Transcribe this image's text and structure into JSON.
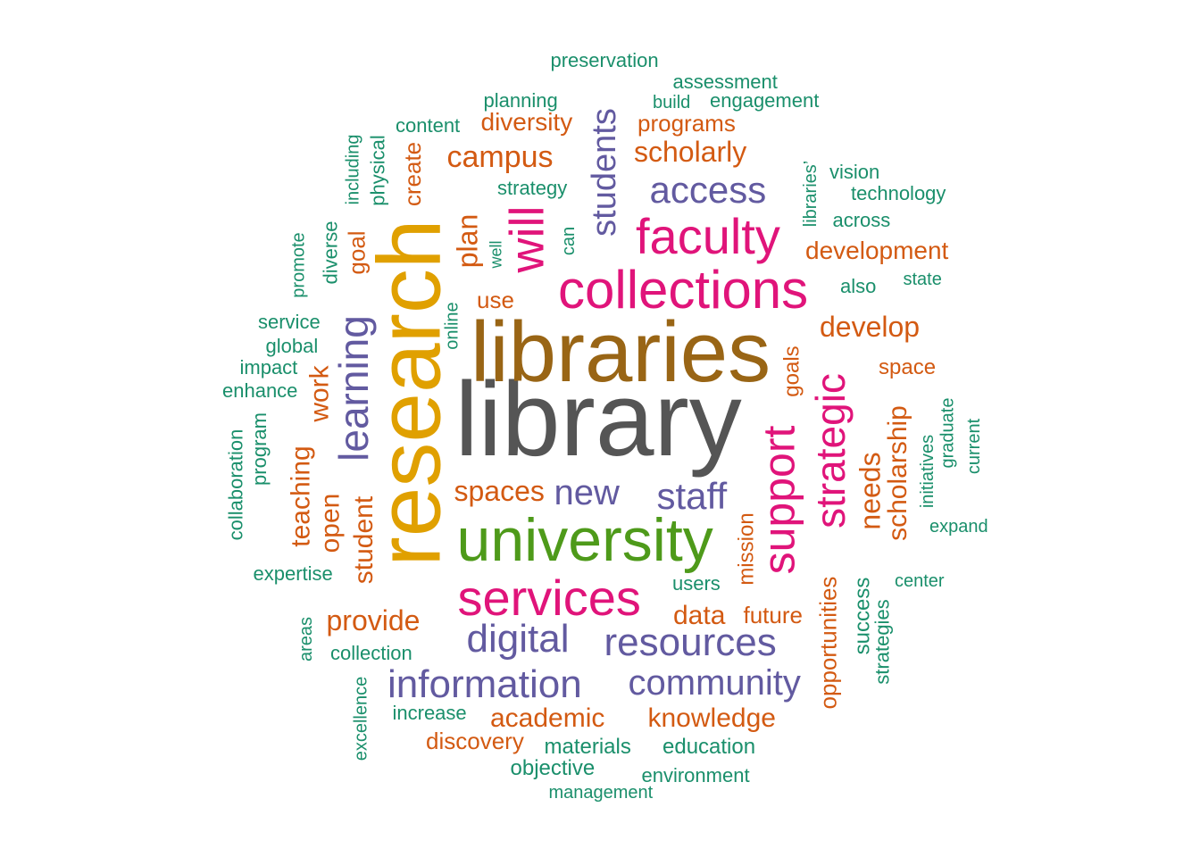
{
  "palette": {
    "gray": "#555555",
    "brown": "#996515",
    "gold": "#E0A000",
    "green": "#4E9A1A",
    "magenta": "#E0147A",
    "purple": "#625AA0",
    "orange": "#D35A12",
    "teal": "#1A8F6B"
  },
  "words": [
    {
      "text": "library",
      "color": "gray"
    },
    {
      "text": "libraries",
      "color": "brown"
    },
    {
      "text": "research",
      "color": "gold"
    },
    {
      "text": "university",
      "color": "green"
    },
    {
      "text": "collections",
      "color": "magenta"
    },
    {
      "text": "services",
      "color": "magenta"
    },
    {
      "text": "faculty",
      "color": "magenta"
    },
    {
      "text": "support",
      "color": "magenta"
    },
    {
      "text": "strategic",
      "color": "magenta"
    },
    {
      "text": "will",
      "color": "magenta"
    },
    {
      "text": "information",
      "color": "purple"
    },
    {
      "text": "resources",
      "color": "purple"
    },
    {
      "text": "digital",
      "color": "purple"
    },
    {
      "text": "community",
      "color": "purple"
    },
    {
      "text": "access",
      "color": "purple"
    },
    {
      "text": "learning",
      "color": "purple"
    },
    {
      "text": "students",
      "color": "purple"
    },
    {
      "text": "new",
      "color": "purple"
    },
    {
      "text": "staff",
      "color": "purple"
    },
    {
      "text": "campus",
      "color": "orange"
    },
    {
      "text": "develop",
      "color": "orange"
    },
    {
      "text": "scholarly",
      "color": "orange"
    },
    {
      "text": "development",
      "color": "orange"
    },
    {
      "text": "plan",
      "color": "orange"
    },
    {
      "text": "provide",
      "color": "orange"
    },
    {
      "text": "academic",
      "color": "orange"
    },
    {
      "text": "knowledge",
      "color": "orange"
    },
    {
      "text": "spaces",
      "color": "orange"
    },
    {
      "text": "data",
      "color": "orange"
    },
    {
      "text": "future",
      "color": "orange"
    },
    {
      "text": "diversity",
      "color": "orange"
    },
    {
      "text": "programs",
      "color": "orange"
    },
    {
      "text": "discovery",
      "color": "orange"
    },
    {
      "text": "space",
      "color": "orange"
    },
    {
      "text": "use",
      "color": "orange"
    },
    {
      "text": "work",
      "color": "orange"
    },
    {
      "text": "teaching",
      "color": "orange"
    },
    {
      "text": "open",
      "color": "orange"
    },
    {
      "text": "student",
      "color": "orange"
    },
    {
      "text": "scholarship",
      "color": "orange"
    },
    {
      "text": "needs",
      "color": "orange"
    },
    {
      "text": "opportunities",
      "color": "orange"
    },
    {
      "text": "mission",
      "color": "orange"
    },
    {
      "text": "goals",
      "color": "orange"
    },
    {
      "text": "goal",
      "color": "orange"
    },
    {
      "text": "create",
      "color": "orange"
    },
    {
      "text": "preservation",
      "color": "teal"
    },
    {
      "text": "assessment",
      "color": "teal"
    },
    {
      "text": "build",
      "color": "teal"
    },
    {
      "text": "engagement",
      "color": "teal"
    },
    {
      "text": "planning",
      "color": "teal"
    },
    {
      "text": "content",
      "color": "teal"
    },
    {
      "text": "strategy",
      "color": "teal"
    },
    {
      "text": "vision",
      "color": "teal"
    },
    {
      "text": "technology",
      "color": "teal"
    },
    {
      "text": "across",
      "color": "teal"
    },
    {
      "text": "also",
      "color": "teal"
    },
    {
      "text": "state",
      "color": "teal"
    },
    {
      "text": "service",
      "color": "teal"
    },
    {
      "text": "global",
      "color": "teal"
    },
    {
      "text": "impact",
      "color": "teal"
    },
    {
      "text": "enhance",
      "color": "teal"
    },
    {
      "text": "expertise",
      "color": "teal"
    },
    {
      "text": "collection",
      "color": "teal"
    },
    {
      "text": "increase",
      "color": "teal"
    },
    {
      "text": "materials",
      "color": "teal"
    },
    {
      "text": "education",
      "color": "teal"
    },
    {
      "text": "objective",
      "color": "teal"
    },
    {
      "text": "environment",
      "color": "teal"
    },
    {
      "text": "management",
      "color": "teal"
    },
    {
      "text": "users",
      "color": "teal"
    },
    {
      "text": "center",
      "color": "teal"
    },
    {
      "text": "expand",
      "color": "teal"
    },
    {
      "text": "including",
      "color": "teal"
    },
    {
      "text": "physical",
      "color": "teal"
    },
    {
      "text": "promote",
      "color": "teal"
    },
    {
      "text": "diverse",
      "color": "teal"
    },
    {
      "text": "well",
      "color": "teal"
    },
    {
      "text": "can",
      "color": "teal"
    },
    {
      "text": "online",
      "color": "teal"
    },
    {
      "text": "libraries’",
      "color": "teal"
    },
    {
      "text": "collaboration",
      "color": "teal"
    },
    {
      "text": "program",
      "color": "teal"
    },
    {
      "text": "areas",
      "color": "teal"
    },
    {
      "text": "excellence",
      "color": "teal"
    },
    {
      "text": "initiatives",
      "color": "teal"
    },
    {
      "text": "graduate",
      "color": "teal"
    },
    {
      "text": "current",
      "color": "teal"
    },
    {
      "text": "success",
      "color": "teal"
    },
    {
      "text": "strategies",
      "color": "teal"
    }
  ]
}
